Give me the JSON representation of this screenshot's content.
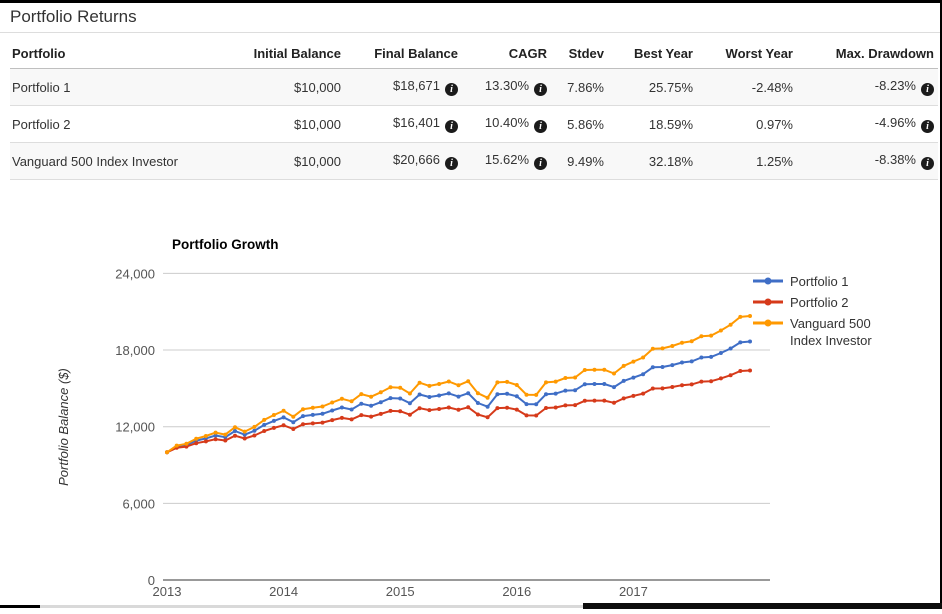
{
  "page": {
    "title": "Portfolio Returns"
  },
  "table": {
    "columns": [
      "Portfolio",
      "Initial Balance",
      "Final Balance",
      "CAGR",
      "Stdev",
      "Best Year",
      "Worst Year",
      "Max. Drawdown"
    ],
    "column_keys": [
      "name",
      "initial_balance",
      "final_balance",
      "cagr",
      "stdev",
      "best_year",
      "worst_year",
      "max_drawdown"
    ],
    "info_icon_columns": [
      "final_balance",
      "cagr",
      "max_drawdown"
    ],
    "info_icon_glyph": "i",
    "rows": [
      {
        "name": "Portfolio 1",
        "initial_balance": "$10,000",
        "final_balance": "$18,671",
        "cagr": "13.30%",
        "stdev": "7.86%",
        "best_year": "25.75%",
        "worst_year": "-2.48%",
        "max_drawdown": "-8.23%"
      },
      {
        "name": "Portfolio 2",
        "initial_balance": "$10,000",
        "final_balance": "$16,401",
        "cagr": "10.40%",
        "stdev": "5.86%",
        "best_year": "18.59%",
        "worst_year": "0.97%",
        "max_drawdown": "-4.96%"
      },
      {
        "name": "Vanguard 500 Index Investor",
        "initial_balance": "$10,000",
        "final_balance": "$20,666",
        "cagr": "15.62%",
        "stdev": "9.49%",
        "best_year": "32.18%",
        "worst_year": "1.25%",
        "max_drawdown": "-8.38%"
      }
    ]
  },
  "chart_data": {
    "type": "line",
    "title": "Portfolio Growth",
    "xlabel": "",
    "ylabel": "Portfolio Balance ($)",
    "x_unit": "month",
    "x_start": "2013-01",
    "x_end": "2017-12",
    "x_tick_labels": [
      "2013",
      "2014",
      "2015",
      "2016",
      "2017"
    ],
    "x_tick_indices": [
      0,
      12,
      24,
      36,
      48
    ],
    "y_ticks": [
      0,
      6000,
      12000,
      18000,
      24000
    ],
    "ylim": [
      0,
      24000
    ],
    "grid": true,
    "legend_position": "right",
    "colors": {
      "portfolio1": "#3f6ec6",
      "portfolio2": "#d63a1a",
      "vanguard500": "#ff9900",
      "gridline": "#cccccc",
      "axis": "#333333",
      "tick_text": "#555555"
    },
    "series": [
      {
        "name": "Portfolio 1",
        "color": "#3f6ec6",
        "values": [
          10000,
          10444,
          10565,
          10906,
          11085,
          11308,
          11177,
          11665,
          11373,
          11680,
          12140,
          12457,
          12728,
          12349,
          12833,
          12925,
          13007,
          13268,
          13504,
          13344,
          13800,
          13634,
          13920,
          14241,
          14210,
          13841,
          14522,
          14326,
          14445,
          14604,
          14360,
          14620,
          13858,
          13565,
          14540,
          14577,
          14380,
          13767,
          13752,
          14546,
          14594,
          14823,
          14856,
          15323,
          15341,
          15343,
          15103,
          15583,
          15847,
          16106,
          16653,
          16671,
          16819,
          17022,
          17112,
          17415,
          17461,
          17769,
          18125,
          18600,
          18671
        ]
      },
      {
        "name": "Portfolio 2",
        "color": "#d63a1a",
        "values": [
          10000,
          10350,
          10446,
          10712,
          10851,
          11024,
          10922,
          11299,
          11075,
          11311,
          11663,
          11904,
          12109,
          11822,
          12187,
          12257,
          12318,
          12514,
          12691,
          12571,
          12911,
          12788,
          12999,
          13237,
          13214,
          12942,
          13445,
          13300,
          13385,
          13504,
          13325,
          13515,
          12955,
          12735,
          13457,
          13485,
          13340,
          12887,
          12876,
          13464,
          13500,
          13664,
          13688,
          14030,
          14044,
          14045,
          13870,
          14218,
          14408,
          14594,
          14987,
          15000,
          15104,
          15249,
          15313,
          15527,
          15560,
          15779,
          16029,
          16361,
          16401
        ]
      },
      {
        "name": "Vanguard 500 Index Investor",
        "color": "#ff9900",
        "legend_lines": [
          "Vanguard 500",
          "Index Investor"
        ],
        "values": [
          10000,
          10518,
          10661,
          11061,
          11274,
          11538,
          11383,
          11963,
          11616,
          11981,
          12532,
          12914,
          13241,
          12783,
          13367,
          13479,
          13579,
          13898,
          14186,
          13990,
          14550,
          14346,
          14696,
          15091,
          15053,
          14601,
          15441,
          15197,
          15343,
          15541,
          15239,
          15559,
          14621,
          14260,
          15464,
          15510,
          15265,
          14508,
          14489,
          15471,
          15531,
          15811,
          15852,
          16437,
          16460,
          16463,
          16163,
          16761,
          17093,
          17418,
          18109,
          18131,
          18318,
          18576,
          18691,
          19076,
          19135,
          19529,
          19984,
          20597,
          20666
        ]
      }
    ]
  }
}
